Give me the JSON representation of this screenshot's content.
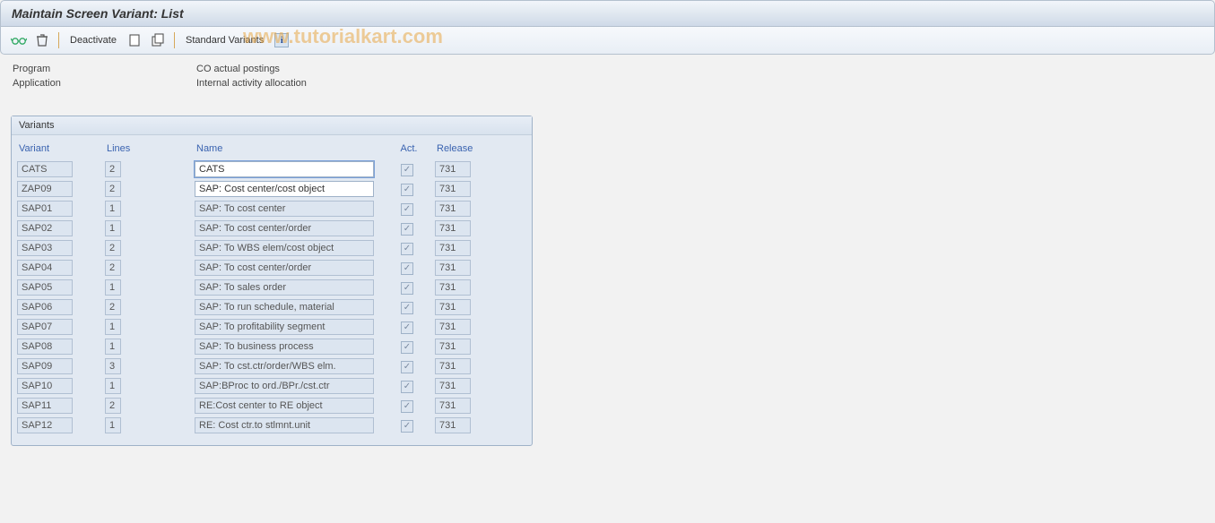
{
  "title": "Maintain Screen Variant: List",
  "toolbar": {
    "deactivate_label": "Deactivate",
    "standard_variants_label": "Standard Variants"
  },
  "watermark": "www.tutorialkart.com",
  "header": {
    "program_label": "Program",
    "program_value": "CO actual postings",
    "application_label": "Application",
    "application_value": "Internal activity allocation"
  },
  "panel": {
    "title": "Variants",
    "columns": {
      "variant": "Variant",
      "lines": "Lines",
      "name": "Name",
      "act": "Act.",
      "release": "Release"
    },
    "rows": [
      {
        "variant": "CATS",
        "lines": "2",
        "name": "CATS",
        "act": true,
        "release": "731",
        "editable": true
      },
      {
        "variant": "ZAP09",
        "lines": "2",
        "name": "SAP: Cost center/cost object",
        "act": true,
        "release": "731",
        "editable": true
      },
      {
        "variant": "SAP01",
        "lines": "1",
        "name": "SAP: To cost center",
        "act": true,
        "release": "731"
      },
      {
        "variant": "SAP02",
        "lines": "1",
        "name": "SAP: To cost center/order",
        "act": true,
        "release": "731"
      },
      {
        "variant": "SAP03",
        "lines": "2",
        "name": "SAP: To WBS elem/cost object",
        "act": true,
        "release": "731"
      },
      {
        "variant": "SAP04",
        "lines": "2",
        "name": "SAP: To cost center/order",
        "act": true,
        "release": "731"
      },
      {
        "variant": "SAP05",
        "lines": "1",
        "name": "SAP: To sales order",
        "act": true,
        "release": "731"
      },
      {
        "variant": "SAP06",
        "lines": "2",
        "name": "SAP: To run schedule, material",
        "act": true,
        "release": "731"
      },
      {
        "variant": "SAP07",
        "lines": "1",
        "name": "SAP: To profitability segment",
        "act": true,
        "release": "731"
      },
      {
        "variant": "SAP08",
        "lines": "1",
        "name": "SAP: To business process",
        "act": true,
        "release": "731"
      },
      {
        "variant": "SAP09",
        "lines": "3",
        "name": "SAP: To cst.ctr/order/WBS elm.",
        "act": true,
        "release": "731"
      },
      {
        "variant": "SAP10",
        "lines": "1",
        "name": "SAP:BProc to ord./BPr./cst.ctr",
        "act": true,
        "release": "731"
      },
      {
        "variant": "SAP11",
        "lines": "2",
        "name": "RE:Cost center to RE object",
        "act": true,
        "release": "731"
      },
      {
        "variant": "SAP12",
        "lines": "1",
        "name": "RE: Cost ctr.to stlmnt.unit",
        "act": true,
        "release": "731"
      }
    ]
  },
  "colors": {
    "header_link": "#3a63b0",
    "panel_bg": "#e2e9f2",
    "border": "#9fb2c8",
    "readonly_bg": "#dce5f0"
  }
}
